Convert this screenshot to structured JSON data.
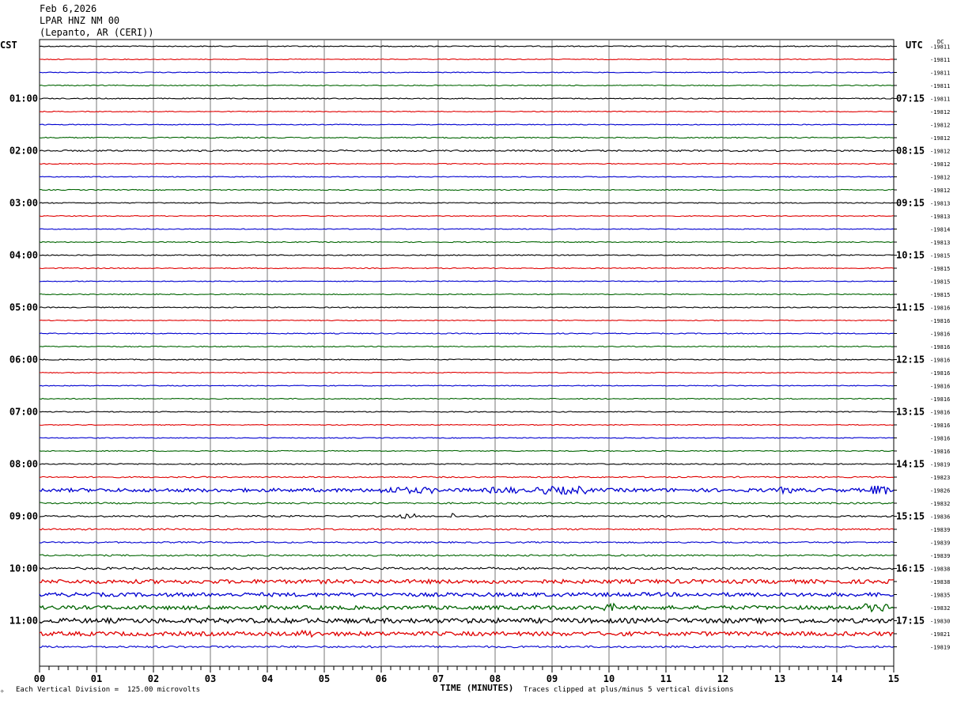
{
  "header": {
    "date": "Feb 6,2026",
    "station": "LPAR HNZ NM 00",
    "location": "(Lepanto, AR (CERI))"
  },
  "left_zone_label": "CST",
  "right_zone_label": "UTC",
  "right_units_label": "DC",
  "footer": {
    "scale_note": "Each Vertical Division =  125.00 microvolts",
    "clip_note": "Traces clipped at plus/minus 5 vertical divisions"
  },
  "chart_data": {
    "type": "line",
    "title": "LPAR HNZ NM 00",
    "xlabel": "TIME (MINUTES)",
    "ylabel": "",
    "x_ticks": [
      "00",
      "01",
      "02",
      "03",
      "04",
      "05",
      "06",
      "07",
      "08",
      "09",
      "10",
      "11",
      "12",
      "13",
      "14",
      "15"
    ],
    "xlim": [
      0,
      15
    ],
    "grid": true,
    "trace_colors": [
      "#000000",
      "#e00000",
      "#0000d0",
      "#006400"
    ],
    "left_hour_labels": [
      "01:00",
      "02:00",
      "03:00",
      "04:00",
      "05:00",
      "06:00",
      "07:00",
      "08:00",
      "09:00",
      "10:00",
      "11:00"
    ],
    "right_hour_labels": [
      "07:15",
      "08:15",
      "09:15",
      "10:15",
      "11:15",
      "12:15",
      "13:15",
      "14:15",
      "15:15",
      "16:15",
      "17:15"
    ],
    "dc_offsets": [
      "-19811",
      "-19811",
      "-19811",
      "-19811",
      "-19811",
      "-19812",
      "-19812",
      "-19812",
      "-19812",
      "-19812",
      "-19812",
      "-19812",
      "-19813",
      "-19813",
      "-19814",
      "-19813",
      "-19815",
      "-19815",
      "-19815",
      "-19815",
      "-19816",
      "-19816",
      "-19816",
      "-19816",
      "-19816",
      "-19816",
      "-19816",
      "-19816",
      "-19816",
      "-19816",
      "-19816",
      "-19816",
      "-19819",
      "-19823",
      "-19826",
      "-19832",
      "-19836",
      "-19839",
      "-19839",
      "-19839",
      "-19838",
      "-19838",
      "-19835",
      "-19832",
      "-19830",
      "-19821",
      "-19819"
    ],
    "trace_activity": [
      0.6,
      0.5,
      0.5,
      0.6,
      0.6,
      0.5,
      0.5,
      0.7,
      1.0,
      0.5,
      0.5,
      0.6,
      0.6,
      0.5,
      0.5,
      0.6,
      0.6,
      0.6,
      0.5,
      0.6,
      0.6,
      0.5,
      0.6,
      0.6,
      0.6,
      0.5,
      0.5,
      0.6,
      0.6,
      0.5,
      0.5,
      0.6,
      0.7,
      0.8,
      2.2,
      1.0,
      1.0,
      1.0,
      0.9,
      1.0,
      1.4,
      2.5,
      2.4,
      2.4,
      3.0,
      2.6,
      1.2
    ],
    "burst_segments": [
      {
        "trace": 34,
        "from_min": 6.0,
        "to_min": 6.9,
        "amp": 4
      },
      {
        "trace": 34,
        "from_min": 7.9,
        "to_min": 8.4,
        "amp": 4
      },
      {
        "trace": 34,
        "from_min": 8.7,
        "to_min": 9.6,
        "amp": 5
      },
      {
        "trace": 34,
        "from_min": 13.0,
        "to_min": 13.3,
        "amp": 4
      },
      {
        "trace": 34,
        "from_min": 14.6,
        "to_min": 14.9,
        "amp": 6
      },
      {
        "trace": 36,
        "from_min": 6.3,
        "to_min": 6.6,
        "amp": 3
      },
      {
        "trace": 36,
        "from_min": 7.2,
        "to_min": 7.3,
        "amp": 5
      },
      {
        "trace": 43,
        "from_min": 9.9,
        "to_min": 10.1,
        "amp": 5
      },
      {
        "trace": 43,
        "from_min": 14.5,
        "to_min": 14.9,
        "amp": 5
      },
      {
        "trace": 45,
        "from_min": 4.6,
        "to_min": 4.8,
        "amp": 5
      }
    ]
  }
}
